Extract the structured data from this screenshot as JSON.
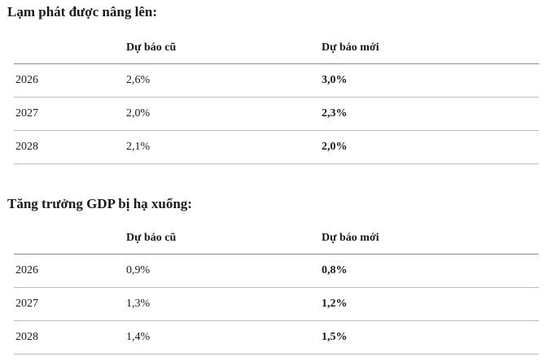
{
  "inflation": {
    "title": "Lạm phát được nâng lên:",
    "headers": {
      "year": "",
      "old": "Dự báo cũ",
      "new": "Dự báo mới"
    },
    "rows": [
      {
        "year": "2026",
        "old": "2,6%",
        "new": "3,0%"
      },
      {
        "year": "2027",
        "old": "2,0%",
        "new": "2,3%"
      },
      {
        "year": "2028",
        "old": "2,1%",
        "new": "2,0%"
      }
    ]
  },
  "gdp": {
    "title": "Tăng trưởng GDP bị hạ xuống:",
    "headers": {
      "year": "",
      "old": "Dự báo cũ",
      "new": "Dự báo mới"
    },
    "rows": [
      {
        "year": "2026",
        "old": "0,9%",
        "new": "0,8%"
      },
      {
        "year": "2027",
        "old": "1,3%",
        "new": "1,2%"
      },
      {
        "year": "2028",
        "old": "1,4%",
        "new": "1,5%"
      }
    ]
  }
}
